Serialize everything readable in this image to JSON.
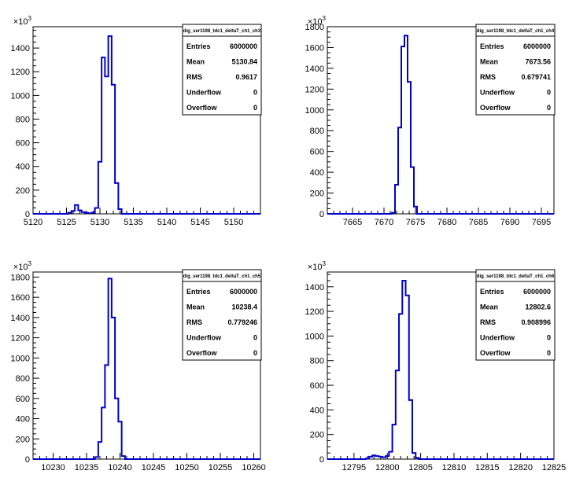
{
  "chart_data": [
    {
      "type": "bar",
      "histogram_title": "dig_ser1198_tdc1_deltaT_ch1_ch3",
      "y_multiplier": "10",
      "y_exponent": "3",
      "xlim": [
        5120,
        5154
      ],
      "ylim": [
        0,
        1580
      ],
      "bin_width": 0.5,
      "x_ticks": [
        "5120",
        "5125",
        "5130",
        "5135",
        "5140",
        "5145",
        "5150"
      ],
      "y_ticks": [
        "0",
        "200",
        "400",
        "600",
        "800",
        "1000",
        "1200",
        "1400"
      ],
      "x_tick_values": [
        5120,
        5125,
        5130,
        5135,
        5140,
        5145,
        5150
      ],
      "y_tick_values": [
        0,
        200,
        400,
        600,
        800,
        1000,
        1200,
        1400
      ],
      "bins": [
        {
          "x": 5125.5,
          "y": 10
        },
        {
          "x": 5126,
          "y": 25
        },
        {
          "x": 5126.5,
          "y": 75
        },
        {
          "x": 5127,
          "y": 30
        },
        {
          "x": 5127.5,
          "y": 15
        },
        {
          "x": 5128,
          "y": 8
        },
        {
          "x": 5128.5,
          "y": 5
        },
        {
          "x": 5129,
          "y": 10
        },
        {
          "x": 5129.5,
          "y": 50
        },
        {
          "x": 5130,
          "y": 440
        },
        {
          "x": 5130.5,
          "y": 1320
        },
        {
          "x": 5131,
          "y": 1160
        },
        {
          "x": 5131.5,
          "y": 1500
        },
        {
          "x": 5132,
          "y": 1090
        },
        {
          "x": 5132.5,
          "y": 260
        },
        {
          "x": 5133,
          "y": 40
        }
      ],
      "stats": [
        {
          "label": "Entries",
          "value": "6000000"
        },
        {
          "label": "Mean",
          "value": "5130.84"
        },
        {
          "label": "RMS",
          "value": "0.9617"
        },
        {
          "label": "Underflow",
          "value": "0"
        },
        {
          "label": "Overflow",
          "value": "0"
        }
      ],
      "line_color": "#0000cc"
    },
    {
      "type": "bar",
      "histogram_title": "dig_ser1198_tdc1_deltaT_ch1_ch4",
      "y_multiplier": "10",
      "y_exponent": "3",
      "xlim": [
        7661,
        7697
      ],
      "ylim": [
        0,
        1800
      ],
      "bin_width": 0.5,
      "x_ticks": [
        "7665",
        "7670",
        "7675",
        "7680",
        "7685",
        "7690",
        "7695"
      ],
      "y_ticks": [
        "0",
        "200",
        "400",
        "600",
        "800",
        "1000",
        "1200",
        "1400",
        "1600",
        "1800"
      ],
      "x_tick_values": [
        7665,
        7670,
        7675,
        7680,
        7685,
        7690,
        7695
      ],
      "y_tick_values": [
        0,
        200,
        400,
        600,
        800,
        1000,
        1200,
        1400,
        1600,
        1800
      ],
      "bins": [
        {
          "x": 7671.5,
          "y": 10
        },
        {
          "x": 7672,
          "y": 280
        },
        {
          "x": 7672.5,
          "y": 830
        },
        {
          "x": 7673,
          "y": 1610
        },
        {
          "x": 7673.5,
          "y": 1715
        },
        {
          "x": 7674,
          "y": 1270
        },
        {
          "x": 7674.5,
          "y": 450
        },
        {
          "x": 7675,
          "y": 70
        }
      ],
      "stats": [
        {
          "label": "Entries",
          "value": "6000000"
        },
        {
          "label": "Mean",
          "value": "7673.56"
        },
        {
          "label": "RMS",
          "value": "0.679741"
        },
        {
          "label": "Underflow",
          "value": "0"
        },
        {
          "label": "Overflow",
          "value": "0"
        }
      ],
      "line_color": "#0000cc"
    },
    {
      "type": "bar",
      "histogram_title": "dig_ser1198_tdc1_deltaT_ch1_ch5",
      "y_multiplier": "10",
      "y_exponent": "3",
      "xlim": [
        10227,
        10261
      ],
      "ylim": [
        0,
        1850
      ],
      "bin_width": 0.5,
      "x_ticks": [
        "10230",
        "10235",
        "10240",
        "10245",
        "10250",
        "10255",
        "10260"
      ],
      "y_ticks": [
        "0",
        "200",
        "400",
        "600",
        "800",
        "1000",
        "1200",
        "1400",
        "1600",
        "1800"
      ],
      "x_tick_values": [
        10230,
        10235,
        10240,
        10245,
        10250,
        10255,
        10260
      ],
      "y_tick_values": [
        0,
        200,
        400,
        600,
        800,
        1000,
        1200,
        1400,
        1600,
        1800
      ],
      "bins": [
        {
          "x": 10236.5,
          "y": 20
        },
        {
          "x": 10237,
          "y": 170
        },
        {
          "x": 10237.5,
          "y": 510
        },
        {
          "x": 10238,
          "y": 930
        },
        {
          "x": 10238.5,
          "y": 1785
        },
        {
          "x": 10239,
          "y": 1400
        },
        {
          "x": 10239.5,
          "y": 600
        },
        {
          "x": 10240,
          "y": 370
        },
        {
          "x": 10240.5,
          "y": 30
        }
      ],
      "stats": [
        {
          "label": "Entries",
          "value": "6000000"
        },
        {
          "label": "Mean",
          "value": "10238.4"
        },
        {
          "label": "RMS",
          "value": "0.779246"
        },
        {
          "label": "Underflow",
          "value": "0"
        },
        {
          "label": "Overflow",
          "value": "0"
        }
      ],
      "line_color": "#0000cc"
    },
    {
      "type": "bar",
      "histogram_title": "dig_ser1198_tdc1_deltaT_ch1_ch6",
      "y_multiplier": "10",
      "y_exponent": "3",
      "xlim": [
        12791,
        12825
      ],
      "ylim": [
        0,
        1520
      ],
      "bin_width": 0.5,
      "x_ticks": [
        "12795",
        "12800",
        "12805",
        "12810",
        "12815",
        "12820",
        "12825"
      ],
      "y_ticks": [
        "0",
        "200",
        "400",
        "600",
        "800",
        "1000",
        "1200",
        "1400"
      ],
      "x_tick_values": [
        12795,
        12800,
        12805,
        12810,
        12815,
        12820,
        12825
      ],
      "y_tick_values": [
        0,
        200,
        400,
        600,
        800,
        1000,
        1200,
        1400
      ],
      "bins": [
        {
          "x": 12797,
          "y": 5
        },
        {
          "x": 12797.5,
          "y": 20
        },
        {
          "x": 12798,
          "y": 30
        },
        {
          "x": 12798.5,
          "y": 25
        },
        {
          "x": 12799,
          "y": 20
        },
        {
          "x": 12799.5,
          "y": 15
        },
        {
          "x": 12800,
          "y": 25
        },
        {
          "x": 12800.5,
          "y": 60
        },
        {
          "x": 12801,
          "y": 280
        },
        {
          "x": 12801.5,
          "y": 720
        },
        {
          "x": 12802,
          "y": 1180
        },
        {
          "x": 12802.5,
          "y": 1450
        },
        {
          "x": 12803,
          "y": 1330
        },
        {
          "x": 12803.5,
          "y": 480
        },
        {
          "x": 12804,
          "y": 50
        },
        {
          "x": 12804.5,
          "y": 10
        }
      ],
      "stats": [
        {
          "label": "Entries",
          "value": "6000000"
        },
        {
          "label": "Mean",
          "value": "12802.6"
        },
        {
          "label": "RMS",
          "value": "0.908996"
        },
        {
          "label": "Underflow",
          "value": "0"
        },
        {
          "label": "Overflow",
          "value": "0"
        }
      ],
      "line_color": "#0000cc"
    }
  ]
}
